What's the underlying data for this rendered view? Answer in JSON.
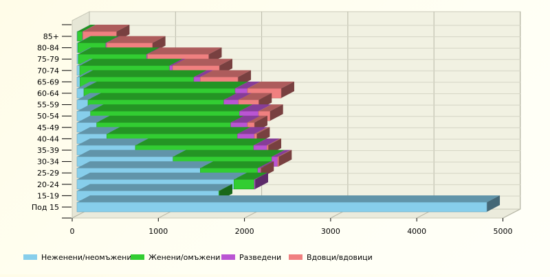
{
  "chart_data": {
    "type": "bar",
    "orientation": "horizontal",
    "stacked": true,
    "style": "3d",
    "categories": [
      "85+",
      "80-84",
      "75-79",
      "70-74",
      "65-69",
      "60-64",
      "55-59",
      "50-54",
      "45-49",
      "40-44",
      "35-39",
      "30-34",
      "25-29",
      "20-24",
      "15-19",
      "Под 15"
    ],
    "series": [
      {
        "name": "Неженени/неомъжени",
        "color": "#87ceeb",
        "values": [
          5,
          10,
          15,
          32,
          35,
          80,
          128,
          157,
          229,
          346,
          678,
          1115,
          1431,
          1822,
          1646,
          4757
        ]
      },
      {
        "name": "Женени/омъжени",
        "color": "#32cd32",
        "values": [
          60,
          325,
          793,
          1043,
          1322,
          1756,
          1577,
          1729,
          1556,
          1517,
          1373,
          1146,
          668,
          237,
          6,
          0
        ]
      },
      {
        "name": "Разведени",
        "color": "#ba55d3",
        "values": [
          3,
          10,
          10,
          35,
          74,
          143,
          170,
          221,
          194,
          196,
          154,
          69,
          32,
          8,
          0,
          0
        ]
      },
      {
        "name": "Вдовци/вдовици",
        "color": "#f08080",
        "values": [
          390,
          530,
          710,
          542,
          437,
          391,
          234,
          133,
          80,
          27,
          14,
          11,
          2,
          0,
          0,
          0
        ]
      }
    ],
    "xlim": [
      0,
      5000
    ],
    "xticks": [
      "0",
      "1000",
      "2000",
      "3000",
      "4000",
      "5000"
    ],
    "grid": true,
    "legend": "bottom"
  }
}
